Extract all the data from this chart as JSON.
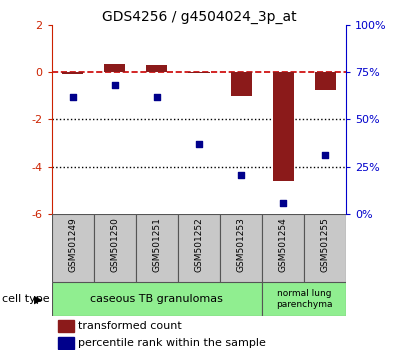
{
  "title": "GDS4256 / g4504024_3p_at",
  "samples": [
    "GSM501249",
    "GSM501250",
    "GSM501251",
    "GSM501252",
    "GSM501253",
    "GSM501254",
    "GSM501255"
  ],
  "red_bars": [
    -0.1,
    0.35,
    0.3,
    -0.05,
    -1.0,
    -4.6,
    -0.75
  ],
  "blue_squares": [
    -1.05,
    -0.55,
    -1.05,
    -3.05,
    -4.35,
    -5.55,
    -3.5
  ],
  "ylim": [
    -6,
    2
  ],
  "left_yticks": [
    -6,
    -4,
    -2,
    0,
    2
  ],
  "left_yticklabels": [
    "-6",
    "-4",
    "-2",
    "0",
    "2"
  ],
  "right_ytick_positions": [
    -6,
    -4,
    -2,
    0,
    2
  ],
  "right_ytick_labels": [
    "0%",
    "25%",
    "50%",
    "75%",
    "100%"
  ],
  "red_color": "#8B1A1A",
  "blue_color": "#00008B",
  "left_axis_color": "#CC2200",
  "right_axis_color": "#0000CC",
  "dashed_line_color": "#CC0000",
  "dotted_line_color": "#000000",
  "green_fill": "#90EE90",
  "gray_fill": "#C8C8C8",
  "legend_red": "transformed count",
  "legend_blue": "percentile rank within the sample",
  "bar_width": 0.5,
  "cell_type_label": "cell type"
}
